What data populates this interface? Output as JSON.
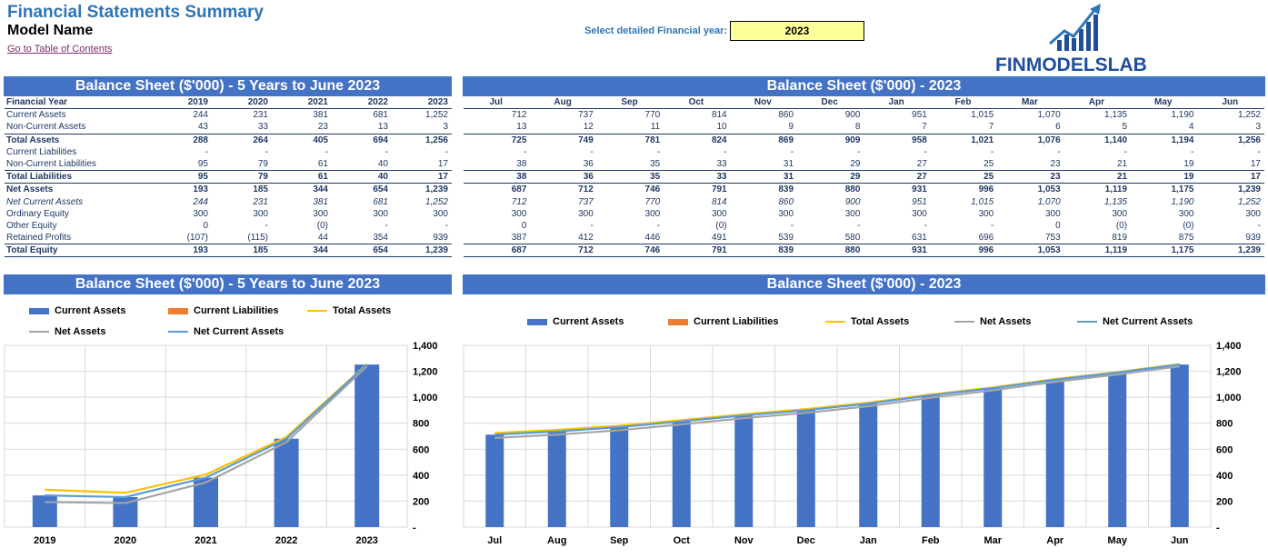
{
  "header": {
    "title": "Financial Statements Summary",
    "model_name": "Model Name",
    "toc_link": "Go to Table of Contents",
    "year_label": "Select detailed Financial year:",
    "year_value": "2023",
    "logo_text": "FINMODELSLAB"
  },
  "colors": {
    "banner": "#4472c4",
    "current_assets": "#4472c4",
    "current_liabilities": "#ed7d31",
    "total_assets": "#ffc000",
    "net_assets": "#a5a5a5",
    "net_current_assets": "#5b9bd5"
  },
  "annual_table": {
    "banner": "Balance Sheet ($'000) - 5 Years to June 2023",
    "header_label": "Financial Year",
    "columns": [
      "2019",
      "2020",
      "2021",
      "2022",
      "2023"
    ],
    "rows": [
      {
        "label": "Current Assets",
        "values": [
          "244",
          "231",
          "381",
          "681",
          "1,252"
        ],
        "style": ""
      },
      {
        "label": "Non-Current Assets",
        "values": [
          "43",
          "33",
          "23",
          "13",
          "3"
        ],
        "style": "bbot"
      },
      {
        "label": "Total Assets",
        "values": [
          "288",
          "264",
          "405",
          "694",
          "1,256"
        ],
        "style": "bold"
      },
      {
        "label": "Current Liabilities",
        "values": [
          "-",
          "-",
          "-",
          "-",
          "-"
        ],
        "style": ""
      },
      {
        "label": "Non-Current Liabilities",
        "values": [
          "95",
          "79",
          "61",
          "40",
          "17"
        ],
        "style": "bbot"
      },
      {
        "label": "Total Liabilities",
        "values": [
          "95",
          "79",
          "61",
          "40",
          "17"
        ],
        "style": "bold bbot"
      },
      {
        "label": "Net Assets",
        "values": [
          "193",
          "185",
          "344",
          "654",
          "1,239"
        ],
        "style": "bold"
      },
      {
        "label": "Net Current Assets",
        "values": [
          "244",
          "231",
          "381",
          "681",
          "1,252"
        ],
        "style": "ital"
      },
      {
        "label": "Ordinary Equity",
        "values": [
          "300",
          "300",
          "300",
          "300",
          "300"
        ],
        "style": ""
      },
      {
        "label": "Other Equity",
        "values": [
          "0",
          "-",
          "(0)",
          "-",
          "-"
        ],
        "style": ""
      },
      {
        "label": "Retained Profits",
        "values": [
          "(107)",
          "(115)",
          "44",
          "354",
          "939"
        ],
        "style": "bbot"
      },
      {
        "label": "Total Equity",
        "values": [
          "193",
          "185",
          "344",
          "654",
          "1,239"
        ],
        "style": "bold bbot"
      }
    ]
  },
  "monthly_table": {
    "banner": "Balance Sheet ($'000) - 2023",
    "columns": [
      "Jul",
      "Aug",
      "Sep",
      "Oct",
      "Nov",
      "Dec",
      "Jan",
      "Feb",
      "Mar",
      "Apr",
      "May",
      "Jun"
    ],
    "rows": [
      {
        "values": [
          "712",
          "737",
          "770",
          "814",
          "860",
          "900",
          "951",
          "1,015",
          "1,070",
          "1,135",
          "1,190",
          "1,252"
        ],
        "style": ""
      },
      {
        "values": [
          "13",
          "12",
          "11",
          "10",
          "9",
          "8",
          "7",
          "7",
          "6",
          "5",
          "4",
          "3"
        ],
        "style": "bbot"
      },
      {
        "values": [
          "725",
          "749",
          "781",
          "824",
          "869",
          "909",
          "958",
          "1,021",
          "1,076",
          "1,140",
          "1,194",
          "1,256"
        ],
        "style": "bold"
      },
      {
        "values": [
          "-",
          "-",
          "-",
          "-",
          "-",
          "-",
          "-",
          "-",
          "-",
          "-",
          "-",
          "-"
        ],
        "style": ""
      },
      {
        "values": [
          "38",
          "36",
          "35",
          "33",
          "31",
          "29",
          "27",
          "25",
          "23",
          "21",
          "19",
          "17"
        ],
        "style": "bbot"
      },
      {
        "values": [
          "38",
          "36",
          "35",
          "33",
          "31",
          "29",
          "27",
          "25",
          "23",
          "21",
          "19",
          "17"
        ],
        "style": "bold bbot"
      },
      {
        "values": [
          "687",
          "712",
          "746",
          "791",
          "839",
          "880",
          "931",
          "996",
          "1,053",
          "1,119",
          "1,175",
          "1,239"
        ],
        "style": "bold"
      },
      {
        "values": [
          "712",
          "737",
          "770",
          "814",
          "860",
          "900",
          "951",
          "1,015",
          "1,070",
          "1,135",
          "1,190",
          "1,252"
        ],
        "style": "ital"
      },
      {
        "values": [
          "300",
          "300",
          "300",
          "300",
          "300",
          "300",
          "300",
          "300",
          "300",
          "300",
          "300",
          "300"
        ],
        "style": ""
      },
      {
        "values": [
          "0",
          "-",
          "-",
          "(0)",
          "-",
          "-",
          "-",
          "-",
          "0",
          "(0)",
          "(0)",
          "-"
        ],
        "style": ""
      },
      {
        "values": [
          "387",
          "412",
          "446",
          "491",
          "539",
          "580",
          "631",
          "696",
          "753",
          "819",
          "875",
          "939"
        ],
        "style": "bbot"
      },
      {
        "values": [
          "687",
          "712",
          "746",
          "791",
          "839",
          "880",
          "931",
          "996",
          "1,053",
          "1,119",
          "1,175",
          "1,239"
        ],
        "style": "bold bbot"
      }
    ]
  },
  "chart_data": [
    {
      "type": "bar",
      "title": "Balance Sheet ($'000) - 5 Years to June 2023",
      "categories": [
        "2019",
        "2020",
        "2021",
        "2022",
        "2023"
      ],
      "ylim": [
        0,
        1400
      ],
      "yticks": [
        "-",
        "200",
        "400",
        "600",
        "800",
        "1,000",
        "1,200",
        "1,400"
      ],
      "grid": true,
      "legend_position": "top",
      "series": [
        {
          "name": "Current Assets",
          "kind": "bar",
          "values": [
            244,
            231,
            381,
            681,
            1252
          ]
        },
        {
          "name": "Current Liabilities",
          "kind": "bar",
          "values": [
            0,
            0,
            0,
            0,
            0
          ]
        },
        {
          "name": "Total Assets",
          "kind": "line",
          "values": [
            288,
            264,
            405,
            694,
            1256
          ]
        },
        {
          "name": "Net Assets",
          "kind": "line",
          "values": [
            193,
            185,
            344,
            654,
            1239
          ]
        },
        {
          "name": "Net Current Assets",
          "kind": "line",
          "values": [
            244,
            231,
            381,
            681,
            1252
          ]
        }
      ]
    },
    {
      "type": "bar",
      "title": "Balance Sheet ($'000) - 2023",
      "categories": [
        "Jul",
        "Aug",
        "Sep",
        "Oct",
        "Nov",
        "Dec",
        "Jan",
        "Feb",
        "Mar",
        "Apr",
        "May",
        "Jun"
      ],
      "ylim": [
        0,
        1400
      ],
      "yticks": [
        "-",
        "200",
        "400",
        "600",
        "800",
        "1,000",
        "1,200",
        "1,400"
      ],
      "grid": true,
      "legend_position": "top",
      "series": [
        {
          "name": "Current Assets",
          "kind": "bar",
          "values": [
            712,
            737,
            770,
            814,
            860,
            900,
            951,
            1015,
            1070,
            1135,
            1190,
            1252
          ]
        },
        {
          "name": "Current Liabilities",
          "kind": "bar",
          "values": [
            0,
            0,
            0,
            0,
            0,
            0,
            0,
            0,
            0,
            0,
            0,
            0
          ]
        },
        {
          "name": "Total Assets",
          "kind": "line",
          "values": [
            725,
            749,
            781,
            824,
            869,
            909,
            958,
            1021,
            1076,
            1140,
            1194,
            1256
          ]
        },
        {
          "name": "Net Assets",
          "kind": "line",
          "values": [
            687,
            712,
            746,
            791,
            839,
            880,
            931,
            996,
            1053,
            1119,
            1175,
            1239
          ]
        },
        {
          "name": "Net Current Assets",
          "kind": "line",
          "values": [
            712,
            737,
            770,
            814,
            860,
            900,
            951,
            1015,
            1070,
            1135,
            1190,
            1252
          ]
        }
      ]
    }
  ]
}
